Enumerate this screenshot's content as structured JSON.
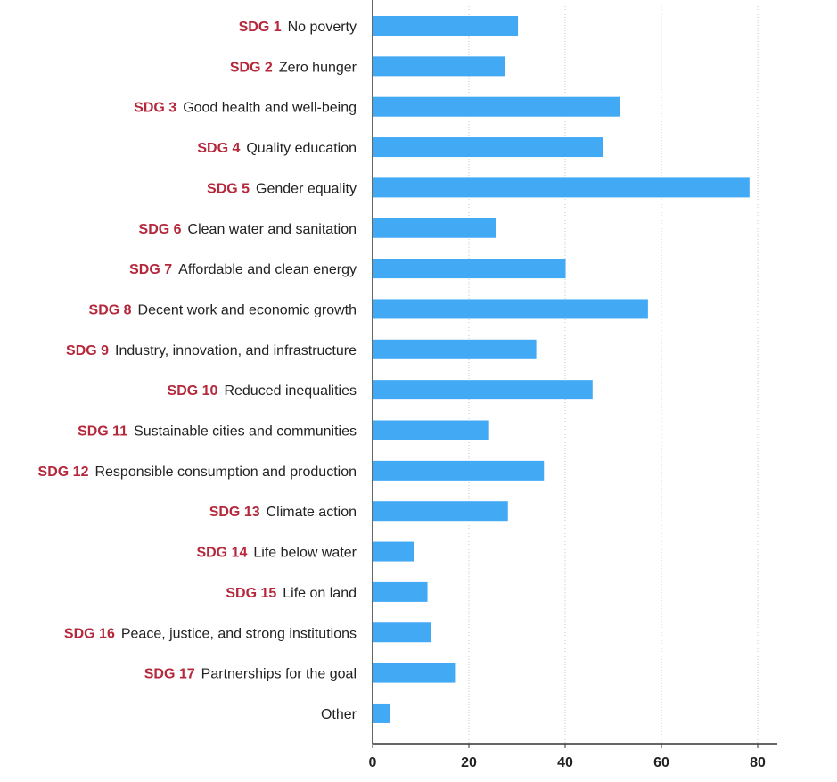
{
  "chart_data": {
    "type": "bar",
    "orientation": "horizontal",
    "categories": [
      {
        "code": "SDG 1",
        "name": "No poverty"
      },
      {
        "code": "SDG 2",
        "name": "Zero hunger"
      },
      {
        "code": "SDG 3",
        "name": "Good health and well-being"
      },
      {
        "code": "SDG 4",
        "name": "Quality education"
      },
      {
        "code": "SDG 5",
        "name": "Gender equality"
      },
      {
        "code": "SDG 6",
        "name": "Clean water and sanitation"
      },
      {
        "code": "SDG 7",
        "name": "Affordable and clean energy"
      },
      {
        "code": "SDG 8",
        "name": "Decent work and economic growth"
      },
      {
        "code": "SDG 9",
        "name": "Industry, innovation, and infrastructure"
      },
      {
        "code": "SDG 10",
        "name": "Reduced inequalities"
      },
      {
        "code": "SDG 11",
        "name": "Sustainable cities and communities"
      },
      {
        "code": "SDG 12",
        "name": "Responsible consumption and production"
      },
      {
        "code": "SDG 13",
        "name": "Climate action"
      },
      {
        "code": "SDG 14",
        "name": "Life below water"
      },
      {
        "code": "SDG 15",
        "name": "Life on land"
      },
      {
        "code": "SDG 16",
        "name": "Peace, justice, and strong institutions"
      },
      {
        "code": "SDG 17",
        "name": "Partnerships for the goal"
      },
      {
        "code": "",
        "name": "Other"
      }
    ],
    "values": [
      30.2,
      27.5,
      51.3,
      47.8,
      78.3,
      25.7,
      40.1,
      57.2,
      34.0,
      45.7,
      24.2,
      35.6,
      28.1,
      8.7,
      11.4,
      12.1,
      17.3,
      3.6
    ],
    "xlim": [
      0,
      80
    ],
    "xticks": [
      0,
      20,
      40,
      60,
      80
    ],
    "xtick_labels": [
      "0",
      "20",
      "40",
      "60",
      "80"
    ],
    "title": "",
    "xlabel": "",
    "ylabel": "",
    "grid": "vertical dotted",
    "legend": "none",
    "colors": {
      "bar": "#42a9f5",
      "code_text": "#b5283c",
      "name_text": "#222222",
      "axis": "#333333",
      "grid": "#c8c8c8"
    }
  }
}
